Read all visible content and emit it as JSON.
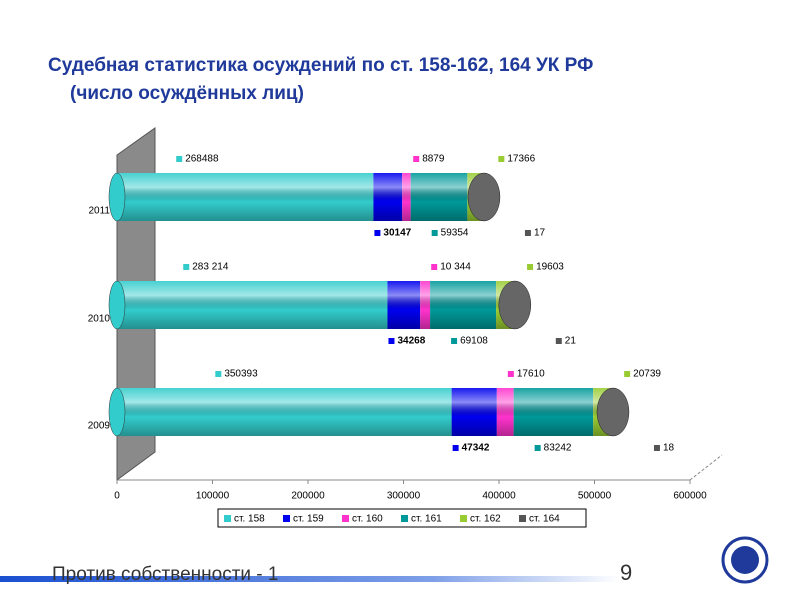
{
  "chart_data": {
    "type": "stacked_bar_horizontal",
    "title": "Судебная статистика осуждений по ст. 158-162, 164 УК РФ",
    "subtitle": "(число осуждённых лиц)",
    "categories": [
      "2011",
      "2010",
      "2009"
    ],
    "series": [
      {
        "name": "ст. 158",
        "color": "#33cccc",
        "values": [
          268488,
          283214,
          350393
        ],
        "value_labels": [
          "268488",
          "283 214",
          "350393"
        ]
      },
      {
        "name": "ст. 159",
        "color": "#0000ee",
        "values": [
          30147,
          34268,
          47342
        ]
      },
      {
        "name": "ст. 160",
        "color": "#ff33cc",
        "values": [
          8879,
          10344,
          17610
        ],
        "value_labels": [
          "8879",
          "10 344",
          "17610"
        ]
      },
      {
        "name": "ст. 161",
        "color": "#009999",
        "values": [
          59354,
          69108,
          83242
        ]
      },
      {
        "name": "ст. 162",
        "color": "#99cc33",
        "values": [
          17366,
          19603,
          20739
        ]
      },
      {
        "name": "ст. 164",
        "color": "#555555",
        "values": [
          17,
          21,
          18
        ]
      }
    ],
    "xlim": [
      0,
      600000
    ],
    "xticks": [
      0,
      100000,
      200000,
      300000,
      400000,
      500000,
      600000
    ],
    "legend": "bottom"
  },
  "footer": {
    "text": "Против собственности - 1",
    "page": "9"
  }
}
